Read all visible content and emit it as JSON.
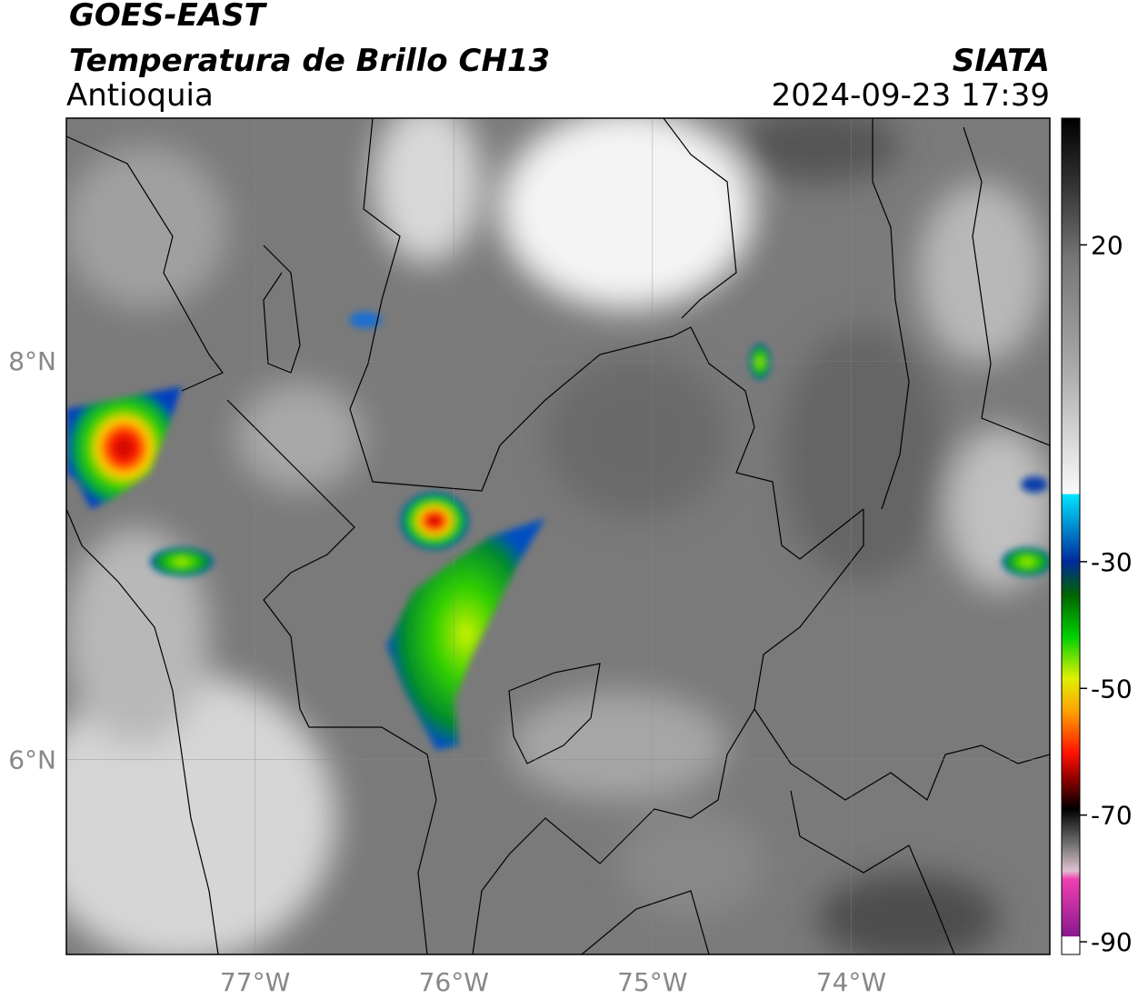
{
  "title": "GOES-EAST",
  "subtitle": "Temperatura de Brillo CH13",
  "region": "Antioquia",
  "source": "SIATA",
  "timestamp": "2024-09-23 17:39",
  "map": {
    "xlim": [
      -77.95,
      -73.0
    ],
    "ylim": [
      5.02,
      9.22
    ],
    "xticks": [
      {
        "value": -77,
        "label": "77°W"
      },
      {
        "value": -76,
        "label": "76°W"
      },
      {
        "value": -75,
        "label": "75°W"
      },
      {
        "value": -74,
        "label": "74°W"
      }
    ],
    "yticks": [
      {
        "value": 6,
        "label": "6°N"
      },
      {
        "value": 8,
        "label": "8°N"
      }
    ]
  },
  "colorbar": {
    "lim": [
      -92,
      40
    ],
    "ticks": [
      20,
      -30,
      -50,
      -70,
      -90
    ]
  }
}
